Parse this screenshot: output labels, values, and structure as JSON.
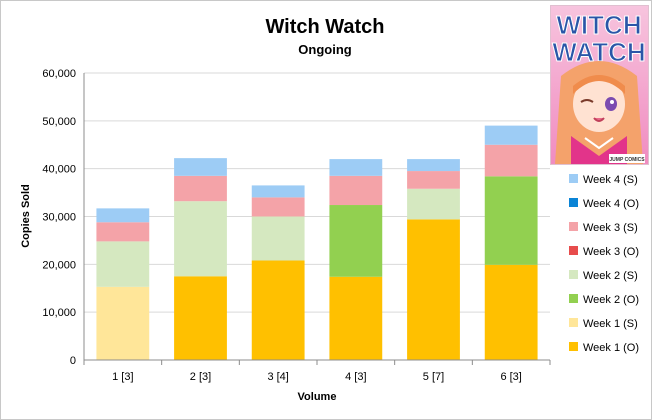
{
  "chart_data": {
    "type": "bar",
    "stacked": true,
    "title": "Witch Watch",
    "subtitle": "Ongoing",
    "xlabel": "Volume",
    "ylabel": "Copies Sold",
    "ylim": [
      0,
      60000
    ],
    "yticks": [
      0,
      10000,
      20000,
      30000,
      40000,
      50000,
      60000
    ],
    "ytick_labels": [
      "0",
      "10,000",
      "20,000",
      "30,000",
      "40,000",
      "50,000",
      "60,000"
    ],
    "grid": true,
    "legend_position": "right",
    "categories": [
      "1 [3]",
      "2 [3]",
      "3 [4]",
      "4 [3]",
      "5 [7]",
      "6 [3]"
    ],
    "series": [
      {
        "name": "Week 1 (O)",
        "color": "#FFC000",
        "values": [
          0,
          17500,
          20800,
          17400,
          29400,
          19900
        ]
      },
      {
        "name": "Week 1 (S)",
        "color": "#FFE699",
        "values": [
          15300,
          0,
          0,
          0,
          0,
          0
        ]
      },
      {
        "name": "Week 2 (O)",
        "color": "#92D050",
        "values": [
          0,
          0,
          0,
          15000,
          0,
          18500
        ]
      },
      {
        "name": "Week 2 (S)",
        "color": "#D5E8C0",
        "values": [
          9500,
          15700,
          9200,
          0,
          6400,
          0
        ]
      },
      {
        "name": "Week 3 (O)",
        "color": "#E74C4C",
        "values": [
          0,
          0,
          0,
          0,
          0,
          0
        ]
      },
      {
        "name": "Week 3 (S)",
        "color": "#F4A3A8",
        "values": [
          4000,
          5300,
          4000,
          6100,
          3700,
          6600
        ]
      },
      {
        "name": "Week 4 (O)",
        "color": "#0A84D6",
        "values": [
          0,
          0,
          0,
          0,
          0,
          0
        ]
      },
      {
        "name": "Week 4 (S)",
        "color": "#9DCCF5",
        "values": [
          2900,
          3700,
          2500,
          3500,
          2500,
          4000
        ]
      }
    ]
  },
  "cover": {
    "title_line1": "WITCH",
    "title_line2": "WATCH",
    "imprint": "JUMP COMICS"
  }
}
